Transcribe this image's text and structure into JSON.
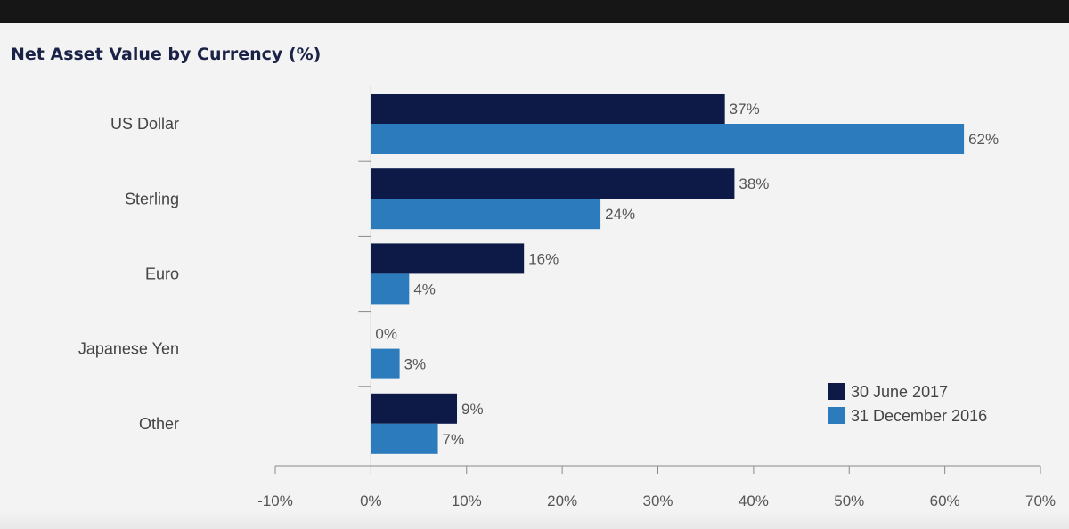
{
  "chart_data": {
    "type": "bar",
    "orientation": "horizontal",
    "title": "Net Asset Value by Currency (%)",
    "xlabel": "",
    "ylabel": "",
    "categories": [
      "US Dollar",
      "Sterling",
      "Euro",
      "Japanese Yen",
      "Other"
    ],
    "series": [
      {
        "name": "30 June 2017",
        "color": "#0d1a48",
        "values": [
          37,
          38,
          16,
          0,
          9
        ],
        "labels": [
          "37%",
          "38%",
          "16%",
          "0%",
          "9%"
        ]
      },
      {
        "name": "31 December 2016",
        "color": "#2b7bbd",
        "values": [
          62,
          24,
          4,
          3,
          7
        ],
        "labels": [
          "62%",
          "24%",
          "4%",
          "3%",
          "7%"
        ]
      }
    ],
    "xlim": [
      -10,
      70
    ],
    "xticks": [
      -10,
      0,
      10,
      20,
      30,
      40,
      50,
      60,
      70
    ],
    "xtick_labels": [
      "-10%",
      "0%",
      "10%",
      "20%",
      "30%",
      "40%",
      "50%",
      "60%",
      "70%"
    ],
    "grid": false,
    "legend_position": "bottom-right"
  }
}
